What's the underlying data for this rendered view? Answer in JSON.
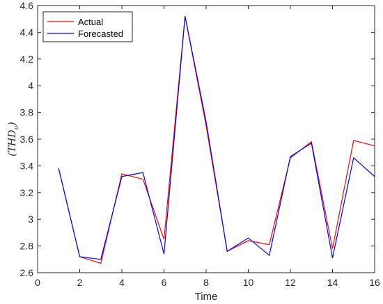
{
  "chart_data": {
    "type": "line",
    "title": "",
    "xlabel": "Time",
    "ylabel": "(THD",
    "ylabel_sub": "u",
    "ylabel_close": ")",
    "xlim": [
      0,
      16
    ],
    "ylim": [
      2.6,
      4.6
    ],
    "xticks": [
      0,
      2,
      4,
      6,
      8,
      10,
      12,
      14,
      16
    ],
    "yticks": [
      2.6,
      2.8,
      3.0,
      3.2,
      3.4,
      3.6,
      3.8,
      4.0,
      4.2,
      4.4,
      4.6
    ],
    "ytick_labels": [
      "2.6",
      "2.8",
      "3",
      "3.2",
      "3.4",
      "3.6",
      "3.8",
      "4",
      "4.2",
      "4.4",
      "4.6"
    ],
    "grid": false,
    "legend_position": "top-left",
    "x": [
      1,
      2,
      3,
      4,
      5,
      6,
      7,
      8,
      9,
      10,
      11,
      12,
      13,
      14,
      15,
      16
    ],
    "series": [
      {
        "name": "Actual",
        "color": "#ff0000",
        "values": [
          3.38,
          2.72,
          2.67,
          3.34,
          3.3,
          2.85,
          4.52,
          3.7,
          2.76,
          2.84,
          2.81,
          3.46,
          3.58,
          2.78,
          3.59,
          3.55
        ]
      },
      {
        "name": "Forecasted",
        "color": "#0000ff",
        "values": [
          3.38,
          2.72,
          2.7,
          3.32,
          3.35,
          2.74,
          4.52,
          3.73,
          2.76,
          2.86,
          2.73,
          3.47,
          3.57,
          2.71,
          3.46,
          3.32
        ]
      }
    ]
  }
}
